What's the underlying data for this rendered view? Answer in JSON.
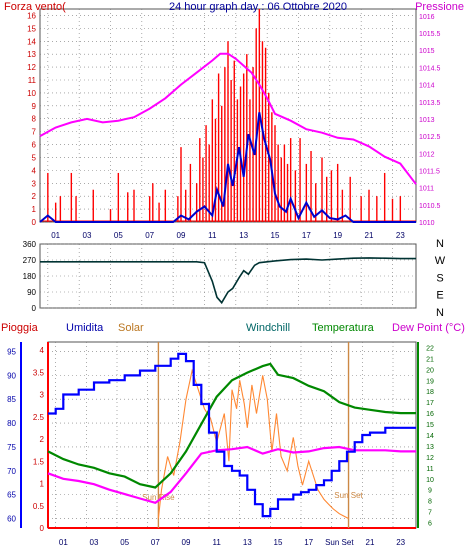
{
  "colors": {
    "wind": "#ff0000",
    "gust_line": "#0000cc",
    "pressure": "#ff00ff",
    "direction": "#003333",
    "humidity": "#0000ff",
    "solar": "#ff8833",
    "temperature": "#008800",
    "dewpoint": "#ff00ff",
    "rain": "#ff0000",
    "windchill": "#006666",
    "grid": "#777777",
    "sun_marker": "#cc8844"
  },
  "chart_data": [
    {
      "type": "line",
      "title": "24 hour graph day : 06 Ottobre 2020",
      "left_axis_label": "Forza vento(",
      "right_axis_label": "Pressione",
      "x_tick_labels": [
        "01",
        "03",
        "05",
        "07",
        "09",
        "11",
        "13",
        "15",
        "17",
        "19",
        "21",
        "23"
      ],
      "y_left_ticks": [
        "0",
        "1",
        "2",
        "3",
        "4",
        "5",
        "6",
        "7",
        "8",
        "9",
        "10",
        "11",
        "12",
        "13",
        "14",
        "15",
        "16"
      ],
      "y_left_range": [
        0,
        16.5
      ],
      "y_right_ticks": [
        "1010",
        "1010.5",
        "1011",
        "1011.5",
        "1012",
        "1012.5",
        "1013",
        "1013.5",
        "1014",
        "1014.5",
        "1015",
        "1015.5",
        "1016"
      ],
      "y_right_range": [
        1010,
        1016.2
      ],
      "x_range": [
        0,
        24
      ],
      "series": [
        {
          "axis": "right",
          "x": [
            0,
            1,
            2,
            3,
            4,
            5,
            6,
            7,
            8,
            9,
            10,
            11,
            11.5,
            12,
            12.5,
            13,
            13.5,
            14,
            14.5,
            15,
            16,
            17,
            18,
            19,
            20,
            21,
            22,
            23,
            24
          ],
          "values": [
            1012.5,
            1012.75,
            1012.9,
            1013.0,
            1012.9,
            1012.95,
            1013.05,
            1013.3,
            1013.6,
            1014.0,
            1014.35,
            1014.7,
            1014.9,
            1014.9,
            1014.75,
            1014.55,
            1014.35,
            1014.0,
            1013.6,
            1013.15,
            1012.95,
            1012.7,
            1012.6,
            1012.45,
            1012.4,
            1012.2,
            1011.9,
            1011.7,
            1011.1
          ]
        },
        {
          "axis": "left",
          "x": [
            0,
            0.5,
            1,
            2,
            3,
            4,
            5,
            6,
            7,
            8,
            8.5,
            9,
            9.5,
            10,
            10.5,
            11,
            11.3,
            11.7,
            12,
            12.3,
            12.7,
            13,
            13.3,
            13.7,
            14,
            14.3,
            14.7,
            15,
            15.3,
            15.7,
            16,
            16.5,
            17,
            17.5,
            18,
            18.5,
            19,
            19.5,
            20,
            22,
            24
          ],
          "values": [
            0,
            0.5,
            0,
            0,
            0,
            0,
            0,
            0,
            0,
            0,
            0,
            0.5,
            0.2,
            0.8,
            1.2,
            0.5,
            2.5,
            1.2,
            4.5,
            2.8,
            5.8,
            3.5,
            6.8,
            5.2,
            8.5,
            6.5,
            4.8,
            2.2,
            1.2,
            0.8,
            1.8,
            0.3,
            1.5,
            0.4,
            0.9,
            0.3,
            0.2,
            0.5,
            0,
            0,
            0
          ]
        },
        {
          "type": "bar",
          "axis": "left",
          "x": [
            0.5,
            1,
            1.3,
            2,
            2.3,
            3.4,
            4.5,
            5,
            5.6,
            6,
            7,
            7.2,
            7.6,
            8,
            8.8,
            9,
            9.3,
            9.6,
            10,
            10.2,
            10.4,
            10.6,
            10.8,
            11,
            11.2,
            11.4,
            11.6,
            11.8,
            12,
            12.2,
            12.4,
            12.6,
            12.8,
            13,
            13.2,
            13.4,
            13.6,
            13.8,
            14,
            14.2,
            14.4,
            14.6,
            14.8,
            15,
            15.2,
            15.4,
            15.6,
            15.8,
            16,
            16.3,
            16.6,
            17,
            17.3,
            17.6,
            18,
            18.3,
            18.6,
            19,
            19.3,
            19.8,
            20.5,
            21,
            21.5,
            22,
            22.5,
            23
          ],
          "values": [
            3.8,
            1.5,
            2.0,
            3.8,
            2.0,
            2.5,
            1.0,
            3.8,
            2.3,
            2.5,
            2.0,
            3.0,
            1.5,
            2.5,
            2.0,
            5.8,
            2.5,
            4.5,
            3.0,
            6.5,
            5.0,
            7.5,
            6.0,
            9.5,
            8.0,
            11.5,
            9.0,
            12.0,
            14.0,
            11.0,
            12.5,
            9.5,
            10.5,
            11.5,
            13.0,
            9.5,
            12.0,
            15.0,
            16.5,
            14.0,
            13.5,
            10.0,
            8.5,
            7.5,
            6.0,
            5.0,
            6.0,
            4.5,
            6.5,
            4.0,
            6.5,
            4.5,
            5.5,
            3.0,
            5.0,
            3.5,
            4.0,
            4.5,
            2.5,
            3.5,
            2.0,
            2.5,
            2.0,
            3.8,
            1.8,
            2.0
          ]
        }
      ]
    },
    {
      "type": "line",
      "y_left_ticks": [
        "0",
        "90",
        "180",
        "270",
        "360"
      ],
      "y_range": [
        0,
        360
      ],
      "compass_labels": [
        "N",
        "W",
        "S",
        "E",
        "N"
      ],
      "x_range": [
        0,
        24
      ],
      "series": [
        {
          "x": [
            0,
            1,
            2,
            3,
            4,
            5,
            6,
            7,
            8,
            9,
            10,
            10.5,
            11,
            11.3,
            11.6,
            12,
            12.3,
            12.7,
            13,
            13.3,
            13.7,
            14,
            15,
            16,
            17,
            18,
            19,
            20,
            21,
            22,
            23,
            24
          ],
          "values": [
            260,
            260,
            260,
            260,
            260,
            260,
            260,
            260,
            260,
            260,
            260,
            255,
            150,
            60,
            30,
            90,
            110,
            170,
            210,
            190,
            240,
            255,
            265,
            272,
            275,
            270,
            275,
            280,
            282,
            280,
            278,
            278
          ]
        }
      ]
    },
    {
      "type": "line",
      "header_labels": [
        "Pioggia",
        "Umidita",
        "Solar",
        "Windchill",
        "Temperatura",
        "Dew Point (°C)"
      ],
      "y_rain_ticks": [
        "0",
        "0.5",
        "1",
        "1.5",
        "2",
        "2.5",
        "3",
        "3.5",
        "4"
      ],
      "y_humidity_ticks": [
        "60",
        "65",
        "70",
        "75",
        "80",
        "85",
        "90",
        "95"
      ],
      "y_humidity_range": [
        58,
        97
      ],
      "y_temp_ticks": [
        "6",
        "7",
        "8",
        "9",
        "10",
        "11",
        "12",
        "13",
        "14",
        "15",
        "16",
        "17",
        "18",
        "19",
        "20",
        "21",
        "22"
      ],
      "y_temp_range": [
        5.5,
        22.5
      ],
      "x_tick_labels": [
        "01",
        "03",
        "05",
        "07",
        "09",
        "11",
        "13",
        "15",
        "17",
        "Sun Set",
        "21",
        "23"
      ],
      "x_range": [
        0,
        24
      ],
      "annotations": [
        "Sun Rise",
        "Sun Set"
      ],
      "sunrise_hour": 7.2,
      "sunset_hour": 19.6,
      "series": [
        {
          "axis": "humidity",
          "x": [
            0,
            0.5,
            1,
            2,
            3,
            4,
            5,
            6,
            7,
            8,
            8.5,
            9,
            9.5,
            10,
            10.5,
            11,
            11.5,
            12,
            12.5,
            13,
            13.5,
            14,
            14.5,
            15,
            15.5,
            16,
            16.5,
            17,
            17.5,
            18,
            18.5,
            19,
            19.5,
            20,
            20.5,
            21,
            22,
            23,
            24
          ],
          "values": [
            82,
            83,
            86,
            87,
            88.5,
            89,
            90,
            91,
            92,
            93.5,
            94.5,
            93,
            88,
            84,
            78,
            74,
            71,
            70,
            69,
            66,
            63,
            60.5,
            62,
            64,
            64,
            65,
            65.5,
            66,
            67,
            68,
            70,
            72,
            74,
            76,
            77.5,
            78,
            79,
            79,
            79
          ]
        },
        {
          "axis": "temperature",
          "x": [
            0,
            1,
            2,
            3,
            4,
            5,
            6,
            7,
            8,
            9,
            10,
            11,
            12,
            13,
            14,
            14.5,
            15,
            16,
            17,
            18,
            19,
            20,
            21,
            22,
            23,
            24
          ],
          "values": [
            12.5,
            11.8,
            11.3,
            11.0,
            10.5,
            10.2,
            9.5,
            9.2,
            10.5,
            12.5,
            15.0,
            17.5,
            19.0,
            19.7,
            20.3,
            20.5,
            19.5,
            19.2,
            18.5,
            18.0,
            17.0,
            16.5,
            16.3,
            16.1,
            16.0,
            16.0
          ]
        },
        {
          "axis": "temperature",
          "x": [
            0,
            1,
            2,
            3,
            4,
            5,
            6,
            7,
            8,
            9,
            10,
            11,
            12,
            13,
            14,
            15,
            16,
            17,
            18,
            19,
            20,
            21,
            22,
            23,
            24
          ],
          "values": [
            10.5,
            10.0,
            9.8,
            9.5,
            9.0,
            8.6,
            8.2,
            7.8,
            8.8,
            10.5,
            12.3,
            12.6,
            12.7,
            12.9,
            12.3,
            12.7,
            12.4,
            12.5,
            12.8,
            12.9,
            12.6,
            12.6,
            12.6,
            12.5,
            12.5
          ]
        },
        {
          "axis": "humidity",
          "x": [
            7.2,
            7.4,
            7.8,
            8.2,
            8.6,
            9,
            9.4,
            9.8,
            10.2,
            10.6,
            11,
            11.5,
            11.8,
            12,
            12.3,
            12.5,
            12.8,
            13,
            13.3,
            13.6,
            14,
            14.3,
            14.6,
            14.9,
            15.2,
            15.6,
            16,
            16.3,
            16.6,
            17,
            17.3,
            17.6,
            18,
            18.3,
            18.6,
            19,
            19.3,
            19.6
          ],
          "values": [
            60,
            66,
            73,
            69,
            76,
            85,
            91,
            87,
            83,
            81,
            76,
            82,
            72,
            87,
            83,
            89,
            84,
            79,
            88,
            82,
            90,
            85,
            74,
            82,
            73,
            70,
            77,
            71,
            67,
            72,
            69,
            66,
            64,
            63,
            62,
            61,
            60.5,
            60
          ]
        }
      ]
    }
  ]
}
